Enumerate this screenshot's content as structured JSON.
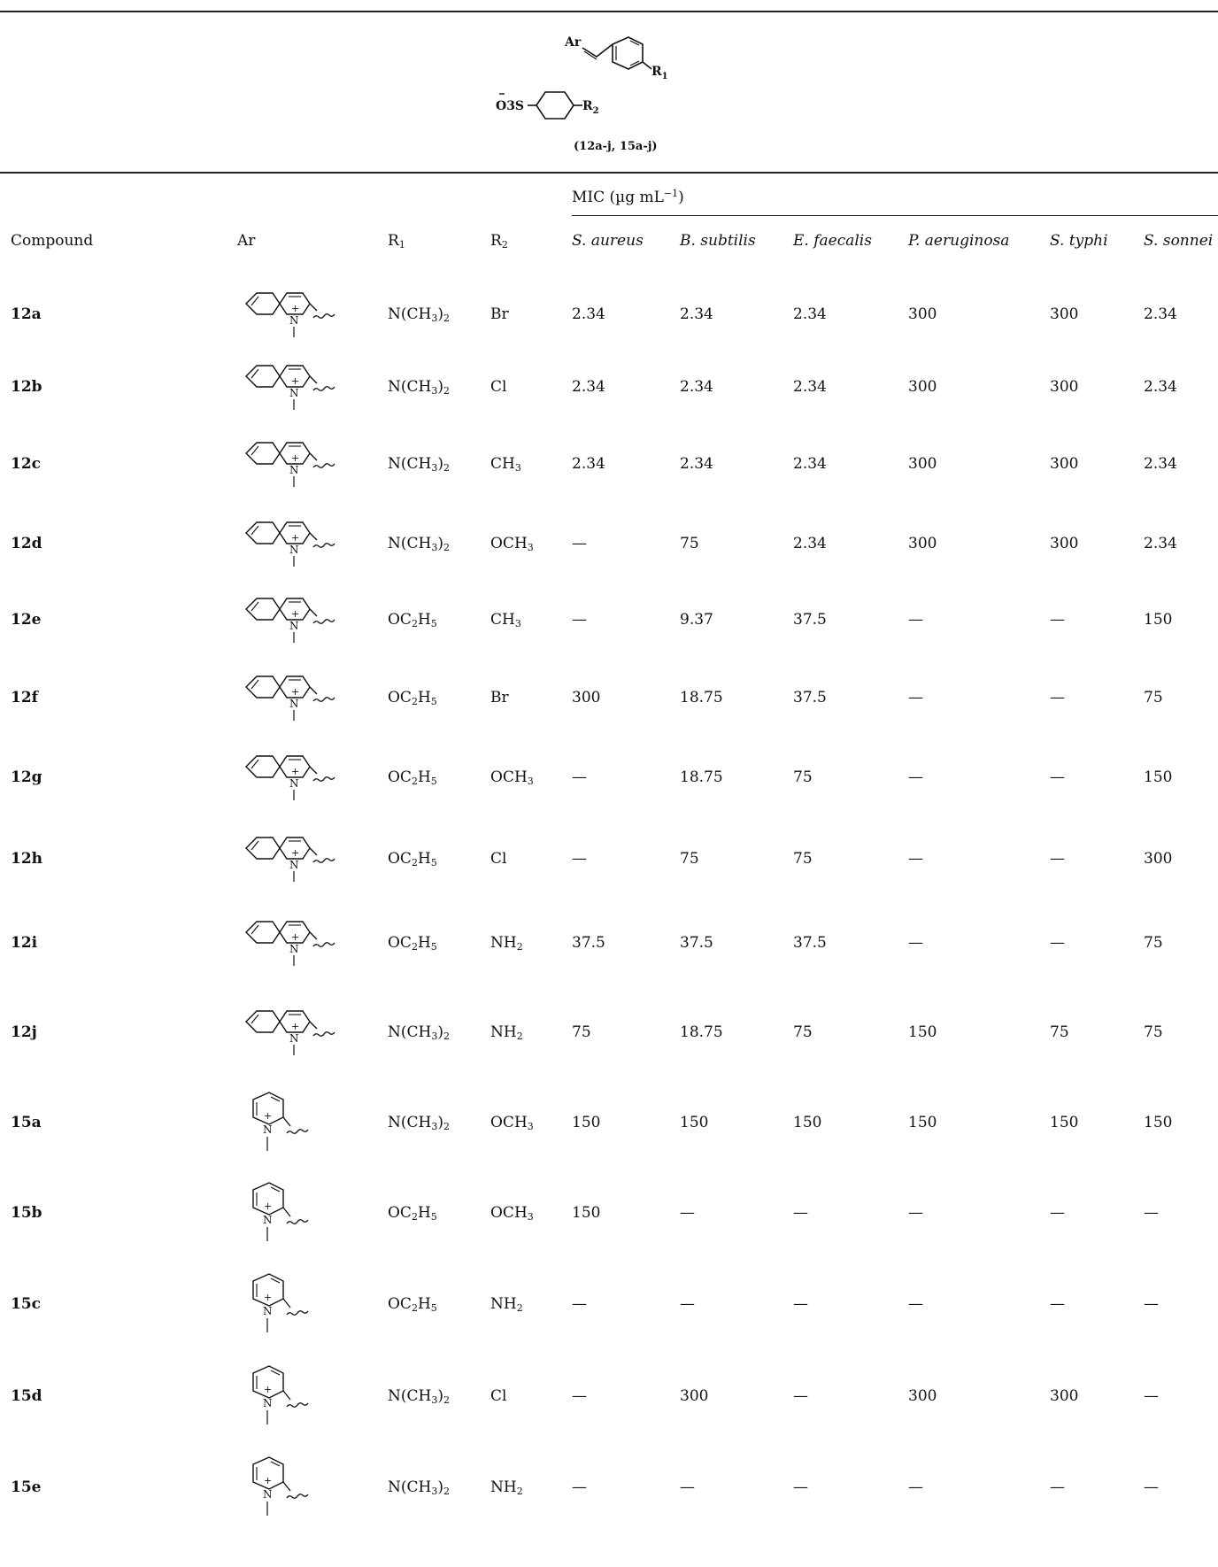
{
  "scheme": {
    "ar_label": "Ar",
    "o3s_label": "O3S",
    "r1_label": "R1",
    "r2_label": "R2",
    "caption": "(12a-j, 15a-j)"
  },
  "header": {
    "mic_prefix": "MIC (µg mL",
    "mic_sup": "−1",
    "mic_suffix": ")",
    "compound": "Compound",
    "ar": "Ar",
    "r1_main": "R",
    "r1_sub": "1",
    "r2_main": "R",
    "r2_sub": "2",
    "organisms": [
      "S. aureus",
      "B. subtilis",
      "E. faecalis",
      "P. aeruginosa",
      "S. typhi",
      "S. sonnei"
    ]
  },
  "rows": [
    {
      "id": "12a",
      "ar": "quinolinium",
      "r1": "N(CH3)2",
      "r2": "Br",
      "mic": [
        "2.34",
        "2.34",
        "2.34",
        "300",
        "300",
        "2.34"
      ]
    },
    {
      "id": "12b",
      "ar": "quinolinium",
      "r1": "N(CH3)2",
      "r2": "Cl",
      "mic": [
        "2.34",
        "2.34",
        "2.34",
        "300",
        "300",
        "2.34"
      ]
    },
    {
      "id": "12c",
      "ar": "quinolinium",
      "r1": "N(CH3)2",
      "r2": "CH3",
      "mic": [
        "2.34",
        "2.34",
        "2.34",
        "300",
        "300",
        "2.34"
      ]
    },
    {
      "id": "12d",
      "ar": "quinolinium",
      "r1": "N(CH3)2",
      "r2": "OCH3",
      "mic": [
        "—",
        "75",
        "2.34",
        "300",
        "300",
        "2.34"
      ]
    },
    {
      "id": "12e",
      "ar": "quinolinium",
      "r1": "OC2H5",
      "r2": "CH3",
      "mic": [
        "—",
        "9.37",
        "37.5",
        "—",
        "—",
        "150"
      ]
    },
    {
      "id": "12f",
      "ar": "quinolinium",
      "r1": "OC2H5",
      "r2": "Br",
      "mic": [
        "300",
        "18.75",
        "37.5",
        "—",
        "—",
        "75"
      ]
    },
    {
      "id": "12g",
      "ar": "quinolinium",
      "r1": "OC2H5",
      "r2": "OCH3",
      "mic": [
        "—",
        "18.75",
        "75",
        "—",
        "—",
        "150"
      ]
    },
    {
      "id": "12h",
      "ar": "quinolinium",
      "r1": "OC2H5",
      "r2": "Cl",
      "mic": [
        "—",
        "75",
        "75",
        "—",
        "—",
        "300"
      ]
    },
    {
      "id": "12i",
      "ar": "quinolinium",
      "r1": "OC2H5",
      "r2": "NH2",
      "mic": [
        "37.5",
        "37.5",
        "37.5",
        "—",
        "—",
        "75"
      ]
    },
    {
      "id": "12j",
      "ar": "quinolinium",
      "r1": "N(CH3)2",
      "r2": "NH2",
      "mic": [
        "75",
        "18.75",
        "75",
        "150",
        "75",
        "75"
      ]
    },
    {
      "id": "15a",
      "ar": "pyridinium",
      "r1": "N(CH3)2",
      "r2": "OCH3",
      "mic": [
        "150",
        "150",
        "150",
        "150",
        "150",
        "150"
      ]
    },
    {
      "id": "15b",
      "ar": "pyridinium",
      "r1": "OC2H5",
      "r2": "OCH3",
      "mic": [
        "150",
        "—",
        "—",
        "—",
        "—",
        "—"
      ]
    },
    {
      "id": "15c",
      "ar": "pyridinium",
      "r1": "OC2H5",
      "r2": "NH2",
      "mic": [
        "—",
        "—",
        "—",
        "—",
        "—",
        "—"
      ]
    },
    {
      "id": "15d",
      "ar": "pyridinium",
      "r1": "N(CH3)2",
      "r2": "Cl",
      "mic": [
        "—",
        "300",
        "—",
        "300",
        "300",
        "—"
      ]
    },
    {
      "id": "15e",
      "ar": "pyridinium",
      "r1": "N(CH3)2",
      "r2": "NH2",
      "mic": [
        "—",
        "—",
        "—",
        "—",
        "—",
        "—"
      ]
    }
  ]
}
